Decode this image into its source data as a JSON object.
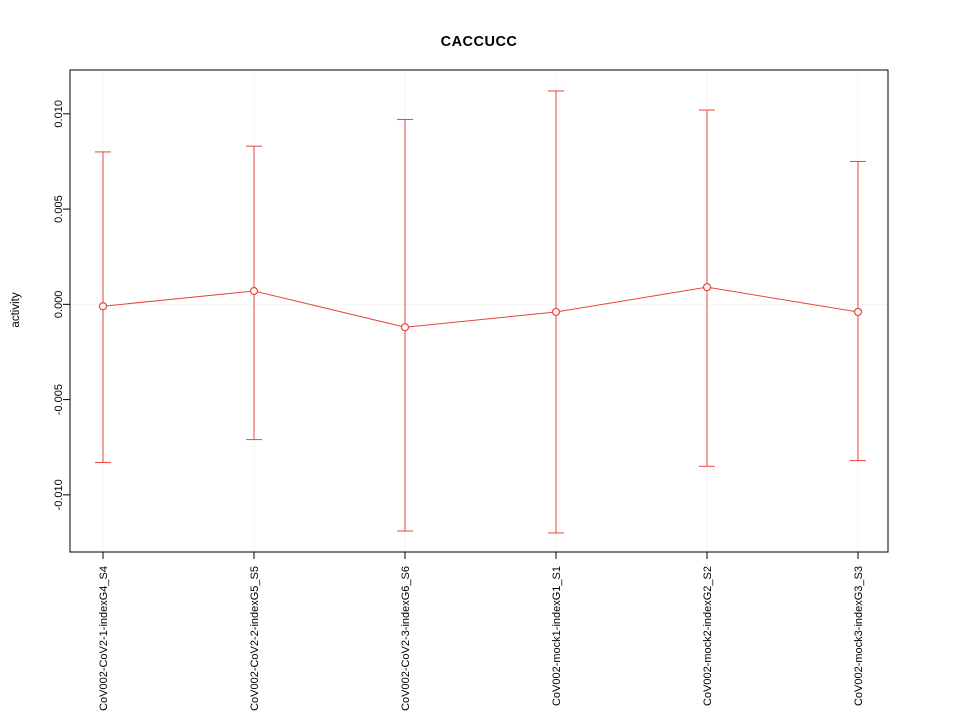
{
  "title": "CACCUCC",
  "chart_data": {
    "type": "line",
    "title": "CACCUCC",
    "xlabel": "",
    "ylabel": "activity",
    "categories": [
      "CoV002-CoV2-1-indexG4_S4",
      "CoV002-CoV2-2-indexG5_S5",
      "CoV002-CoV2-3-indexG6_S6",
      "CoV002-mock1-indexG1_S1",
      "CoV002-mock2-indexG2_S2",
      "CoV002-mock3-indexG3_S3"
    ],
    "series": [
      {
        "name": "activity",
        "values": [
          -0.0001,
          0.0007,
          -0.0012,
          -0.0004,
          0.0009,
          -0.0004
        ],
        "error_low": [
          -0.0083,
          -0.0071,
          -0.0119,
          -0.012,
          -0.0085,
          -0.0082
        ],
        "error_high": [
          0.008,
          0.0083,
          0.0097,
          0.0112,
          0.0102,
          0.0075
        ]
      }
    ],
    "ylim": [
      -0.013,
      0.0123
    ],
    "yticks": [
      -0.01,
      -0.005,
      0.0,
      0.005,
      0.01
    ],
    "ytick_labels": [
      "-0.010",
      "-0.005",
      "0.000",
      "0.005",
      "0.010"
    ],
    "grid": {
      "vertical_at_categories": true,
      "horizontal_at_zero": true,
      "style": "dotted"
    },
    "legend": "none",
    "colors": {
      "series": "#e8463c",
      "grid": "#d9d9d9",
      "axis": "#000000",
      "background": "#ffffff",
      "point_fill": "#ffffff"
    },
    "marker": "open-circle",
    "error_bars": true
  }
}
